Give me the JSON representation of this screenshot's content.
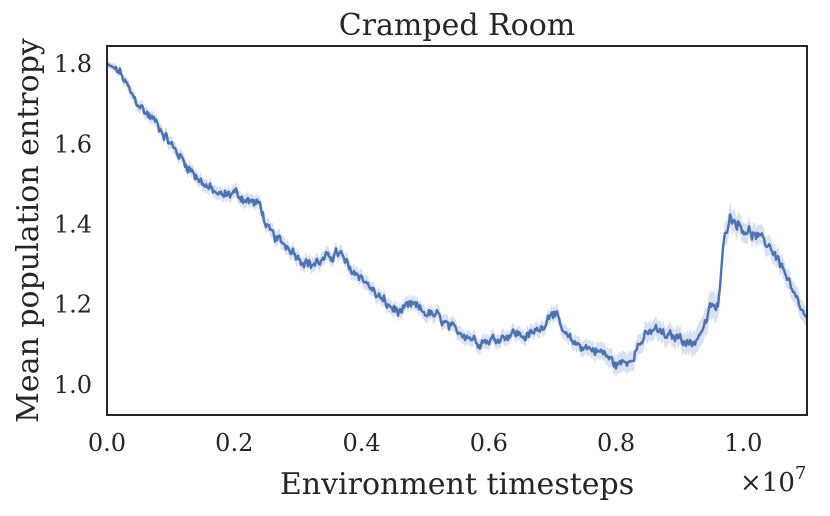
{
  "chart_data": {
    "type": "line",
    "title": "Cramped Room",
    "xlabel": "Environment timesteps",
    "ylabel": "Mean population entropy",
    "x_multiplier_text": "×10",
    "x_multiplier_exp": "7",
    "xlim": [
      0.0,
      1.1
    ],
    "ylim": [
      0.925,
      1.845
    ],
    "x_ticks": [
      0.0,
      0.2,
      0.4,
      0.6,
      0.8,
      1.0
    ],
    "x_tick_labels": [
      "0.0",
      "0.2",
      "0.4",
      "0.6",
      "0.8",
      "1.0"
    ],
    "y_ticks": [
      1.0,
      1.2,
      1.4,
      1.6,
      1.8
    ],
    "y_tick_labels": [
      "1.0",
      "1.2",
      "1.4",
      "1.6",
      "1.8"
    ],
    "grid": false,
    "series": [
      {
        "color": "#4c72b0",
        "band_color": "#c9d3ea",
        "x": [
          0.0,
          0.02,
          0.04,
          0.06,
          0.08,
          0.1,
          0.12,
          0.14,
          0.16,
          0.18,
          0.2,
          0.22,
          0.24,
          0.245,
          0.25,
          0.27,
          0.29,
          0.3,
          0.32,
          0.34,
          0.36,
          0.37,
          0.38,
          0.4,
          0.42,
          0.44,
          0.46,
          0.48,
          0.5,
          0.52,
          0.54,
          0.56,
          0.58,
          0.6,
          0.62,
          0.64,
          0.66,
          0.68,
          0.69,
          0.7,
          0.72,
          0.74,
          0.76,
          0.78,
          0.8,
          0.82,
          0.84,
          0.86,
          0.88,
          0.9,
          0.92,
          0.94,
          0.95,
          0.96,
          0.965,
          0.97,
          0.98,
          1.0,
          1.02,
          1.04,
          1.06,
          1.08,
          1.1
        ],
        "y": [
          1.8,
          1.78,
          1.72,
          1.68,
          1.65,
          1.6,
          1.56,
          1.52,
          1.49,
          1.47,
          1.48,
          1.46,
          1.45,
          1.43,
          1.39,
          1.36,
          1.34,
          1.32,
          1.3,
          1.31,
          1.33,
          1.32,
          1.29,
          1.27,
          1.23,
          1.2,
          1.18,
          1.2,
          1.18,
          1.17,
          1.14,
          1.13,
          1.11,
          1.11,
          1.12,
          1.13,
          1.12,
          1.14,
          1.16,
          1.19,
          1.12,
          1.1,
          1.09,
          1.08,
          1.05,
          1.06,
          1.11,
          1.14,
          1.12,
          1.12,
          1.1,
          1.15,
          1.2,
          1.19,
          1.27,
          1.38,
          1.42,
          1.39,
          1.37,
          1.35,
          1.3,
          1.22,
          1.16
        ],
        "band": [
          0.008,
          0.012,
          0.015,
          0.015,
          0.015,
          0.016,
          0.016,
          0.016,
          0.017,
          0.017,
          0.017,
          0.017,
          0.017,
          0.018,
          0.018,
          0.018,
          0.018,
          0.018,
          0.018,
          0.018,
          0.018,
          0.018,
          0.018,
          0.018,
          0.018,
          0.018,
          0.018,
          0.018,
          0.018,
          0.018,
          0.018,
          0.018,
          0.018,
          0.018,
          0.018,
          0.018,
          0.018,
          0.018,
          0.018,
          0.02,
          0.02,
          0.02,
          0.02,
          0.022,
          0.025,
          0.025,
          0.025,
          0.025,
          0.025,
          0.025,
          0.03,
          0.035,
          0.035,
          0.035,
          0.03,
          0.03,
          0.03,
          0.025,
          0.025,
          0.025,
          0.025,
          0.025,
          0.025
        ]
      }
    ]
  }
}
